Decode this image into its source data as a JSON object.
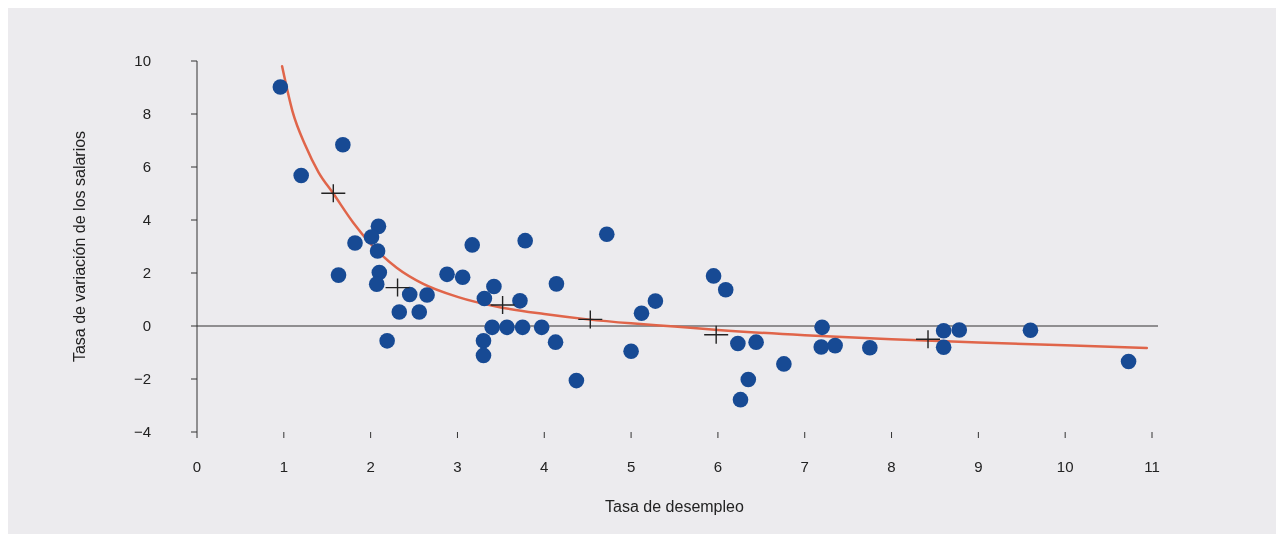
{
  "chart_data": {
    "type": "scatter",
    "xlabel": "Tasa de desempleo",
    "ylabel": "Tasa de variación de los salarios",
    "xlim": [
      0,
      11
    ],
    "ylim": [
      -4,
      10
    ],
    "xticks": [
      0,
      1,
      2,
      3,
      4,
      5,
      6,
      7,
      8,
      9,
      10,
      11
    ],
    "yticks": [
      -4,
      -2,
      0,
      2,
      4,
      6,
      8,
      10
    ],
    "grid": false,
    "ref_lines": [
      {
        "axis": "y",
        "value": 0,
        "color": "#333333"
      }
    ],
    "series": [
      {
        "marker": "circle",
        "color": "#174a94",
        "x": [
          0.96,
          1.68,
          1.2,
          2.09,
          2.01,
          1.82,
          2.08,
          3.17,
          1.63,
          2.1,
          2.07,
          2.88,
          3.06,
          3.42,
          2.45,
          2.65,
          3.31,
          2.33,
          2.56,
          2.19,
          3.4,
          3.57,
          3.3,
          3.3,
          3.72,
          3.78,
          4.14,
          4.72,
          3.75,
          3.97,
          4.13,
          4.37,
          5.0,
          5.12,
          5.28,
          5.95,
          6.09,
          6.23,
          6.44,
          6.35,
          6.26,
          6.76,
          7.2,
          7.19,
          7.35,
          7.75,
          8.6,
          8.78,
          8.6,
          9.6,
          10.73
        ],
        "values": [
          9.02,
          6.84,
          5.68,
          3.76,
          3.36,
          3.13,
          2.83,
          3.06,
          1.92,
          2.02,
          1.58,
          1.95,
          1.84,
          1.49,
          1.19,
          1.17,
          1.04,
          0.53,
          0.53,
          -0.56,
          -0.05,
          -0.05,
          -0.56,
          -1.11,
          0.95,
          3.22,
          1.59,
          3.46,
          -0.05,
          -0.05,
          -0.61,
          -2.06,
          -0.95,
          0.48,
          0.94,
          1.89,
          1.37,
          -0.66,
          -0.61,
          -2.02,
          -2.78,
          -1.43,
          -0.05,
          -0.79,
          -0.74,
          -0.82,
          -0.18,
          -0.15,
          -0.8,
          -0.16,
          -1.34
        ]
      },
      {
        "type": "scatter",
        "marker": "cross",
        "color": "#222222",
        "x": [
          1.57,
          2.31,
          3.52,
          4.53,
          5.98,
          8.42
        ],
        "values": [
          5.01,
          1.45,
          0.79,
          0.25,
          -0.33,
          -0.5
        ]
      },
      {
        "type": "line",
        "line_style": "solid",
        "color": "#e0654a",
        "x": [
          0.98,
          1.1,
          1.25,
          1.4,
          1.57,
          1.8,
          2.0,
          2.3,
          2.6,
          3.0,
          3.5,
          4.0,
          4.5,
          5.0,
          5.5,
          6.0,
          7.0,
          8.0,
          9.0,
          10.0,
          10.94
        ],
        "values": [
          9.8,
          8.1,
          6.8,
          5.8,
          5.0,
          3.9,
          3.1,
          2.2,
          1.6,
          1.1,
          0.7,
          0.45,
          0.25,
          0.1,
          -0.02,
          -0.15,
          -0.35,
          -0.5,
          -0.62,
          -0.73,
          -0.83
        ]
      }
    ]
  }
}
